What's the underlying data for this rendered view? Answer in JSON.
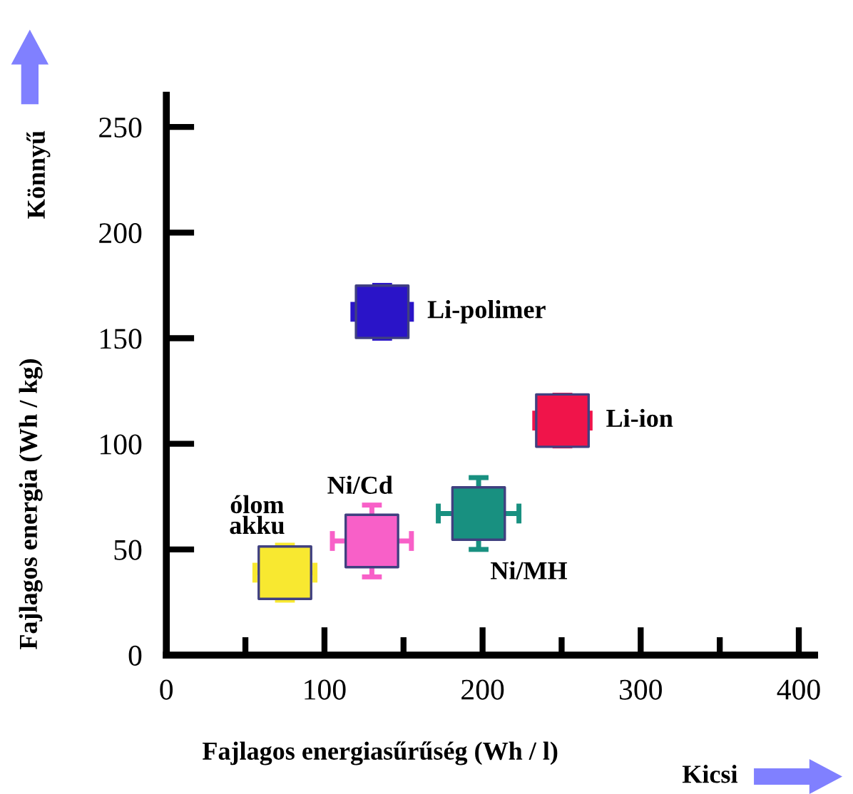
{
  "chart_data": {
    "type": "scatter",
    "xlabel": "Fajlagos energiasűrűség (Wh / l)",
    "ylabel": "Fajlagos energia (Wh / kg)",
    "annotations": [
      "Könnyű",
      "Kicsi"
    ],
    "marker": "square",
    "xlim": [
      0,
      410
    ],
    "ylim": [
      0,
      265
    ],
    "xticks": [
      0,
      {
        "value": 50,
        "label": null
      },
      100,
      {
        "value": 150,
        "label": null
      },
      200,
      {
        "value": 250,
        "label": null
      },
      300,
      {
        "value": 350,
        "label": null
      },
      400
    ],
    "yticks": [
      0,
      50,
      100,
      150,
      200,
      250
    ],
    "grid": false,
    "legend": false,
    "series": [
      {
        "name": "Li-polimer",
        "color": "#2a14c8",
        "x": [
          136.5
        ],
        "values": [
          162.5
        ],
        "xerrors": [
          [
            118,
            155
          ]
        ],
        "errors": [
          [
            150,
            175
          ]
        ]
      },
      {
        "name": "Li-ion",
        "color": "#f0144a",
        "x": [
          250.5
        ],
        "values": [
          111
        ],
        "xerrors": [
          [
            233,
            268
          ]
        ],
        "errors": [
          [
            99,
            123
          ]
        ]
      },
      {
        "name": "Ni/MH",
        "color": "#189080",
        "x": [
          197.5
        ],
        "values": [
          67
        ],
        "xerrors": [
          [
            172,
            223
          ]
        ],
        "errors": [
          [
            50,
            84
          ]
        ]
      },
      {
        "name": "Ni/Cd",
        "color": "#f860c8",
        "x": [
          130
        ],
        "values": [
          54
        ],
        "xerrors": [
          [
            105,
            155
          ]
        ],
        "errors": [
          [
            37,
            71
          ]
        ]
      },
      {
        "name": "ólom akku",
        "color": "#f8e830",
        "x": [
          75
        ],
        "values": [
          39
        ],
        "xerrors": [
          [
            56,
            94
          ]
        ],
        "errors": [
          [
            26,
            52
          ]
        ]
      }
    ]
  }
}
